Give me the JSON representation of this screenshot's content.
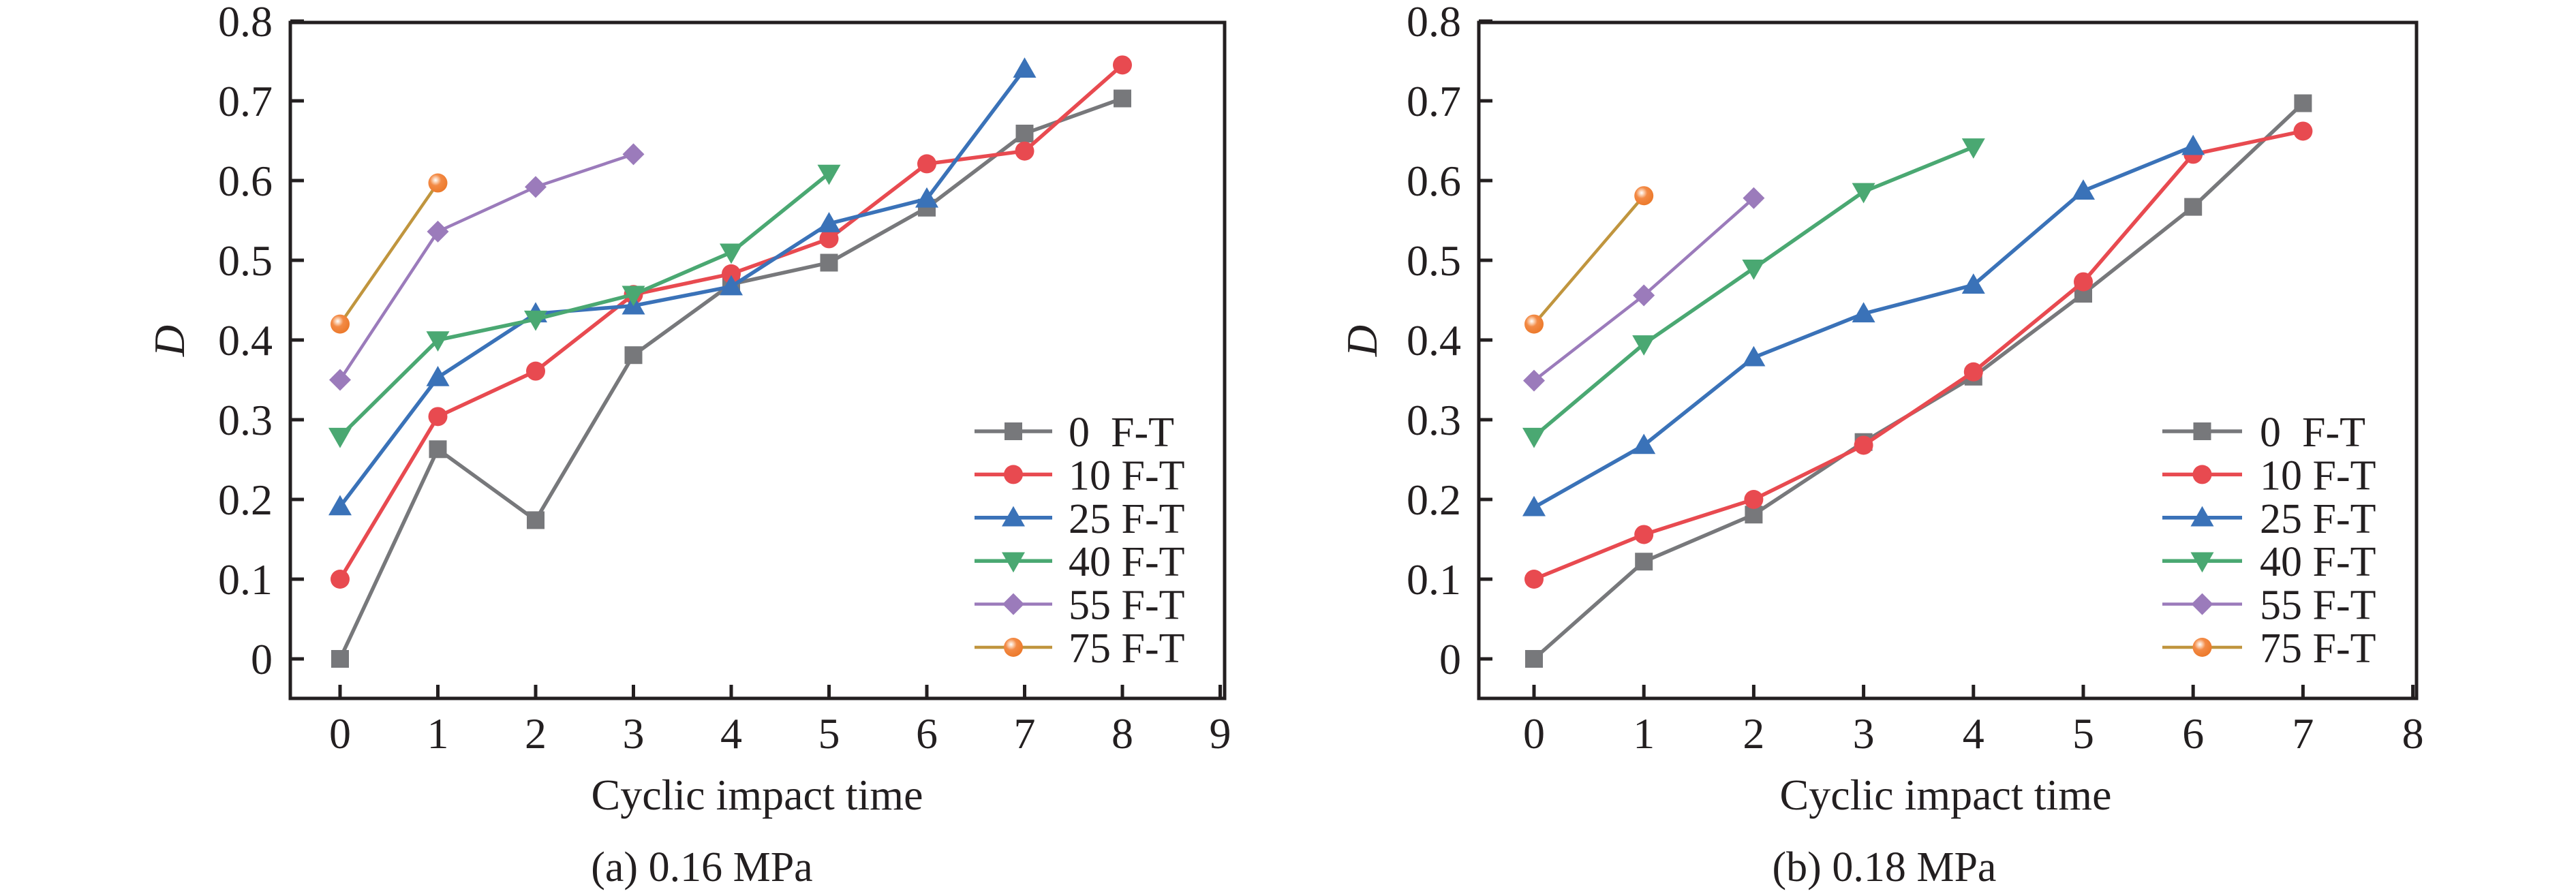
{
  "figure": {
    "panels": [
      "panel_a",
      "panel_b"
    ]
  },
  "chart_data": [
    {
      "id": "panel_a",
      "type": "line",
      "title": "",
      "caption": "(a) 0.16 MPa",
      "xlabel": "Cyclic impact time",
      "ylabel": "D",
      "xlim": [
        -0.5,
        9
      ],
      "ylim": [
        -0.05,
        0.8
      ],
      "xticks": [
        0,
        1,
        2,
        3,
        4,
        5,
        6,
        7,
        8,
        9
      ],
      "xtick_labels": [
        "0",
        "1",
        "2",
        "3",
        "4",
        "5",
        "6",
        "7",
        "8",
        "9"
      ],
      "yticks": [
        0,
        0.1,
        0.2,
        0.3,
        0.4,
        0.5,
        0.6,
        0.7,
        0.8
      ],
      "ytick_labels": [
        "0",
        "0.1",
        "0.2",
        "0.3",
        "0.4",
        "0.5",
        "0.6",
        "0.7",
        "0.8"
      ],
      "grid": false,
      "legend_position": "bottom-right",
      "series": [
        {
          "name": "0  F-T",
          "marker": "square",
          "color": "#77787b",
          "line_color": "#77787b",
          "x": [
            0,
            1,
            2,
            3,
            4,
            5,
            6,
            7,
            8
          ],
          "values": [
            0.0,
            0.263,
            0.174,
            0.381,
            0.47,
            0.497,
            0.566,
            0.659,
            0.703
          ]
        },
        {
          "name": "10 F-T",
          "marker": "circle",
          "color": "#e84a50",
          "line_color": "#e84a50",
          "x": [
            0,
            1,
            2,
            3,
            4,
            5,
            6,
            7,
            8
          ],
          "values": [
            0.1,
            0.304,
            0.361,
            0.457,
            0.483,
            0.527,
            0.621,
            0.637,
            0.745
          ]
        },
        {
          "name": "25 F-T",
          "marker": "triangle-up",
          "color": "#3a72b8",
          "line_color": "#3a72b8",
          "x": [
            0,
            1,
            2,
            3,
            4,
            5,
            6,
            7
          ],
          "values": [
            0.191,
            0.353,
            0.433,
            0.443,
            0.467,
            0.546,
            0.577,
            0.74
          ]
        },
        {
          "name": "40 F-T",
          "marker": "triangle-down",
          "color": "#4aa872",
          "line_color": "#4aa872",
          "x": [
            0,
            1,
            2,
            3,
            4,
            5
          ],
          "values": [
            0.279,
            0.4,
            0.426,
            0.457,
            0.51,
            0.609
          ]
        },
        {
          "name": "55 F-T",
          "marker": "diamond",
          "color": "#9b7bbb",
          "line_color": "#9b7bbb",
          "x": [
            0,
            1,
            2,
            3
          ],
          "values": [
            0.35,
            0.536,
            0.592,
            0.633
          ]
        },
        {
          "name": "75 F-T",
          "marker": "sphere",
          "color": "#f07e32",
          "line_color": "#c0953e",
          "x": [
            0,
            1
          ],
          "values": [
            0.42,
            0.597
          ]
        }
      ]
    },
    {
      "id": "panel_b",
      "type": "line",
      "title": "",
      "caption": "(b) 0.18 MPa",
      "xlabel": "Cyclic impact time",
      "ylabel": "D",
      "xlim": [
        -0.5,
        8
      ],
      "ylim": [
        -0.05,
        0.8
      ],
      "xticks": [
        0,
        1,
        2,
        3,
        4,
        5,
        6,
        7,
        8
      ],
      "xtick_labels": [
        "0",
        "1",
        "2",
        "3",
        "4",
        "5",
        "6",
        "7",
        "8"
      ],
      "yticks": [
        0,
        0.1,
        0.2,
        0.3,
        0.4,
        0.5,
        0.6,
        0.7,
        0.8
      ],
      "ytick_labels": [
        "0",
        "0.1",
        "0.2",
        "0.3",
        "0.4",
        "0.5",
        "0.6",
        "0.7",
        "0.8"
      ],
      "grid": false,
      "legend_position": "bottom-right",
      "series": [
        {
          "name": "0  F-T",
          "marker": "square",
          "color": "#77787b",
          "line_color": "#77787b",
          "x": [
            0,
            1,
            2,
            3,
            4,
            5,
            6,
            7
          ],
          "values": [
            0.0,
            0.122,
            0.181,
            0.272,
            0.354,
            0.458,
            0.567,
            0.697
          ]
        },
        {
          "name": "10 F-T",
          "marker": "circle",
          "color": "#e84a50",
          "line_color": "#e84a50",
          "x": [
            0,
            1,
            2,
            3,
            4,
            5,
            6,
            7
          ],
          "values": [
            0.1,
            0.156,
            0.2,
            0.268,
            0.36,
            0.473,
            0.633,
            0.662
          ]
        },
        {
          "name": "25 F-T",
          "marker": "triangle-up",
          "color": "#3a72b8",
          "line_color": "#3a72b8",
          "x": [
            0,
            1,
            2,
            3,
            4,
            5,
            6
          ],
          "values": [
            0.19,
            0.268,
            0.378,
            0.433,
            0.469,
            0.587,
            0.643
          ]
        },
        {
          "name": "40 F-T",
          "marker": "triangle-down",
          "color": "#4aa872",
          "line_color": "#4aa872",
          "x": [
            0,
            1,
            2,
            3,
            4
          ],
          "values": [
            0.279,
            0.395,
            0.49,
            0.586,
            0.642
          ]
        },
        {
          "name": "55 F-T",
          "marker": "diamond",
          "color": "#9b7bbb",
          "line_color": "#9b7bbb",
          "x": [
            0,
            1,
            2
          ],
          "values": [
            0.349,
            0.456,
            0.578
          ]
        },
        {
          "name": "75 F-T",
          "marker": "sphere",
          "color": "#f07e32",
          "line_color": "#c0953e",
          "x": [
            0,
            1
          ],
          "values": [
            0.42,
            0.581
          ]
        }
      ]
    }
  ]
}
